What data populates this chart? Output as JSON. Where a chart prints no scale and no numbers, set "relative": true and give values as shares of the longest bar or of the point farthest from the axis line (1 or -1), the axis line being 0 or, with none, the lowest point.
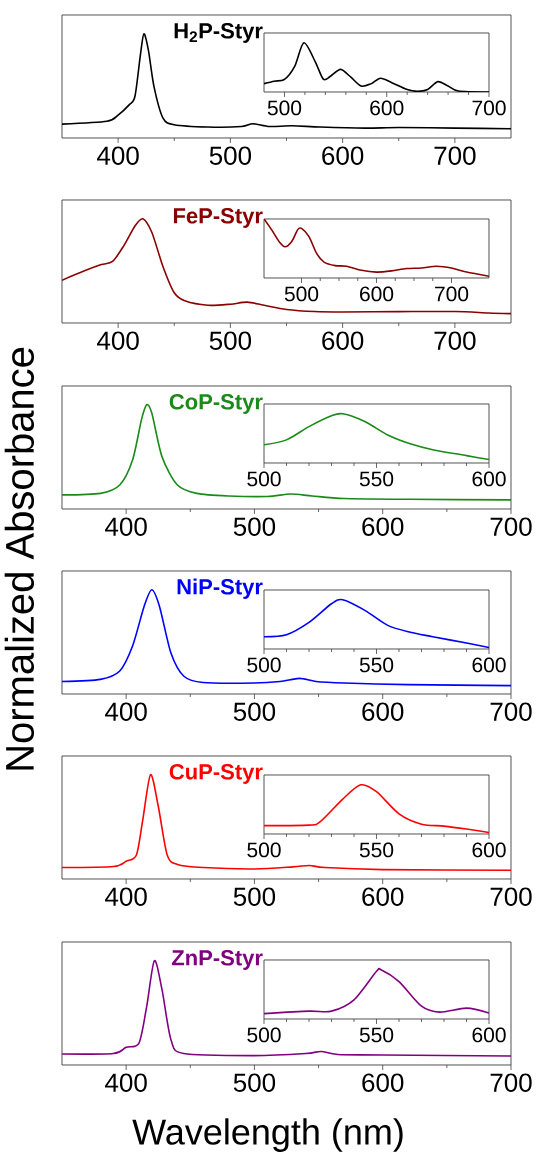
{
  "chart_data": [
    {
      "type": "line",
      "title": "H$_{2}$P-Styr",
      "color": "#000000",
      "relative": true,
      "xlim": [
        350,
        750
      ],
      "xticks": [
        400,
        500,
        600,
        700
      ],
      "x": [
        350,
        390,
        400,
        410,
        415,
        420,
        423,
        427,
        432,
        440,
        450,
        480,
        510,
        520,
        535,
        555,
        580,
        620,
        650,
        700,
        750
      ],
      "values": [
        0.133,
        0.16,
        0.22,
        0.32,
        0.4,
        0.81,
        1.0,
        0.84,
        0.49,
        0.19,
        0.127,
        0.105,
        0.11,
        0.137,
        0.11,
        0.117,
        0.105,
        0.095,
        0.1,
        0.095,
        0.089
      ]
    },
    {
      "type": "line",
      "color": "#000000",
      "relative": true,
      "xlim": [
        480,
        700
      ],
      "xticks": [
        500,
        600,
        700
      ],
      "x": [
        480,
        490,
        500,
        510,
        519,
        530,
        538,
        545,
        555,
        565,
        575,
        585,
        594,
        605,
        620,
        630,
        640,
        650,
        660,
        670,
        700
      ],
      "values": [
        0.17,
        0.22,
        0.255,
        0.52,
        1.0,
        0.62,
        0.26,
        0.32,
        0.46,
        0.3,
        0.12,
        0.17,
        0.28,
        0.19,
        0.05,
        0.014,
        0.05,
        0.21,
        0.12,
        0.02,
        0.0
      ]
    },
    {
      "type": "line",
      "title": "FeP-Styr",
      "color": "#8b0000",
      "relative": true,
      "xlim": [
        350,
        750
      ],
      "xticks": [
        400,
        500,
        600,
        700
      ],
      "x": [
        350,
        370,
        385,
        395,
        405,
        415,
        422,
        430,
        440,
        450,
        460,
        480,
        500,
        515,
        530,
        550,
        575,
        600,
        650,
        700,
        730,
        750
      ],
      "values": [
        0.41,
        0.5,
        0.56,
        0.59,
        0.74,
        0.93,
        1.0,
        0.87,
        0.54,
        0.29,
        0.21,
        0.17,
        0.18,
        0.2,
        0.17,
        0.13,
        0.11,
        0.106,
        0.109,
        0.11,
        0.096,
        0.09
      ]
    },
    {
      "type": "line",
      "color": "#8b0000",
      "relative": true,
      "xlim": [
        450,
        750
      ],
      "xticks": [
        500,
        600,
        700
      ],
      "x": [
        450,
        460,
        470,
        478,
        487,
        495,
        500,
        510,
        520,
        530,
        545,
        560,
        580,
        600,
        620,
        640,
        660,
        680,
        700,
        720,
        750
      ],
      "values": [
        1.0,
        0.82,
        0.62,
        0.53,
        0.62,
        0.82,
        0.84,
        0.7,
        0.42,
        0.27,
        0.21,
        0.2,
        0.13,
        0.1,
        0.12,
        0.16,
        0.17,
        0.2,
        0.17,
        0.1,
        0.03
      ]
    },
    {
      "type": "line",
      "title": "CoP-Styr",
      "ylabel": "Normalized Absorbance",
      "color": "#1a8a1a",
      "relative": true,
      "xlim": [
        350,
        700
      ],
      "xticks": [
        400,
        500,
        600,
        700
      ],
      "x": [
        350,
        380,
        395,
        405,
        412,
        416,
        420,
        428,
        440,
        455,
        480,
        510,
        528,
        545,
        570,
        620,
        700
      ],
      "values": [
        0.135,
        0.15,
        0.23,
        0.47,
        0.86,
        1.0,
        0.92,
        0.5,
        0.23,
        0.15,
        0.125,
        0.12,
        0.144,
        0.125,
        0.1,
        0.093,
        0.087
      ]
    },
    {
      "type": "line",
      "color": "#1a8a1a",
      "relative": true,
      "xlim": [
        500,
        600
      ],
      "xticks": [
        500,
        550,
        600
      ],
      "x": [
        500,
        510,
        520,
        530,
        535,
        545,
        555,
        565,
        575,
        590,
        600
      ],
      "values": [
        0.37,
        0.47,
        0.74,
        0.96,
        1.0,
        0.84,
        0.57,
        0.39,
        0.27,
        0.15,
        0.07
      ]
    },
    {
      "type": "line",
      "title": "NiP-Styr",
      "color": "#0000ff",
      "relative": true,
      "xlim": [
        350,
        700
      ],
      "xticks": [
        400,
        500,
        600,
        700
      ],
      "x": [
        350,
        380,
        395,
        405,
        414,
        420,
        426,
        435,
        445,
        460,
        500,
        520,
        535,
        548,
        570,
        620,
        700
      ],
      "values": [
        0.12,
        0.14,
        0.22,
        0.46,
        0.84,
        1.0,
        0.84,
        0.39,
        0.17,
        0.11,
        0.105,
        0.12,
        0.15,
        0.12,
        0.105,
        0.09,
        0.08
      ]
    },
    {
      "type": "line",
      "color": "#0000ff",
      "relative": true,
      "xlim": [
        500,
        600
      ],
      "xticks": [
        500,
        550,
        600
      ],
      "x": [
        500,
        510,
        520,
        530,
        535,
        545,
        555,
        565,
        575,
        590,
        600
      ],
      "values": [
        0.25,
        0.29,
        0.54,
        0.92,
        1.0,
        0.78,
        0.48,
        0.34,
        0.25,
        0.12,
        0.03
      ]
    },
    {
      "type": "line",
      "title": "CuP-Styr",
      "color": "#ff0000",
      "relative": true,
      "xlim": [
        350,
        700
      ],
      "xticks": [
        400,
        500,
        600,
        700
      ],
      "x": [
        350,
        390,
        400,
        408,
        413,
        419,
        425,
        432,
        440,
        460,
        500,
        530,
        543,
        555,
        600,
        700
      ],
      "values": [
        0.11,
        0.12,
        0.17,
        0.23,
        0.57,
        1.0,
        0.7,
        0.23,
        0.14,
        0.11,
        0.096,
        0.116,
        0.13,
        0.11,
        0.09,
        0.084
      ]
    },
    {
      "type": "line",
      "color": "#ff0000",
      "relative": true,
      "xlim": [
        500,
        600
      ],
      "xticks": [
        500,
        550,
        600
      ],
      "x": [
        500,
        520,
        525,
        535,
        543,
        550,
        560,
        570,
        580,
        590,
        600
      ],
      "values": [
        0.17,
        0.18,
        0.25,
        0.71,
        1.0,
        0.86,
        0.41,
        0.2,
        0.16,
        0.1,
        0.03
      ]
    },
    {
      "type": "line",
      "title": "ZnP-Styr",
      "xlabel": "Wavelength (nm)",
      "color": "#800080",
      "relative": true,
      "xlim": [
        350,
        700
      ],
      "xticks": [
        400,
        500,
        600,
        700
      ],
      "x": [
        350,
        390,
        400,
        410,
        416,
        422,
        428,
        435,
        445,
        500,
        540,
        552,
        565,
        600,
        700
      ],
      "values": [
        0.105,
        0.11,
        0.17,
        0.21,
        0.56,
        1.0,
        0.72,
        0.24,
        0.11,
        0.09,
        0.11,
        0.13,
        0.1,
        0.096,
        0.086
      ]
    },
    {
      "type": "line",
      "color": "#800080",
      "relative": true,
      "xlim": [
        500,
        600
      ],
      "xticks": [
        500,
        550,
        600
      ],
      "x": [
        500,
        520,
        530,
        540,
        550,
        552,
        560,
        570,
        578,
        590,
        600
      ],
      "values": [
        0.11,
        0.16,
        0.16,
        0.39,
        0.97,
        1.0,
        0.76,
        0.26,
        0.14,
        0.22,
        0.12
      ]
    }
  ]
}
